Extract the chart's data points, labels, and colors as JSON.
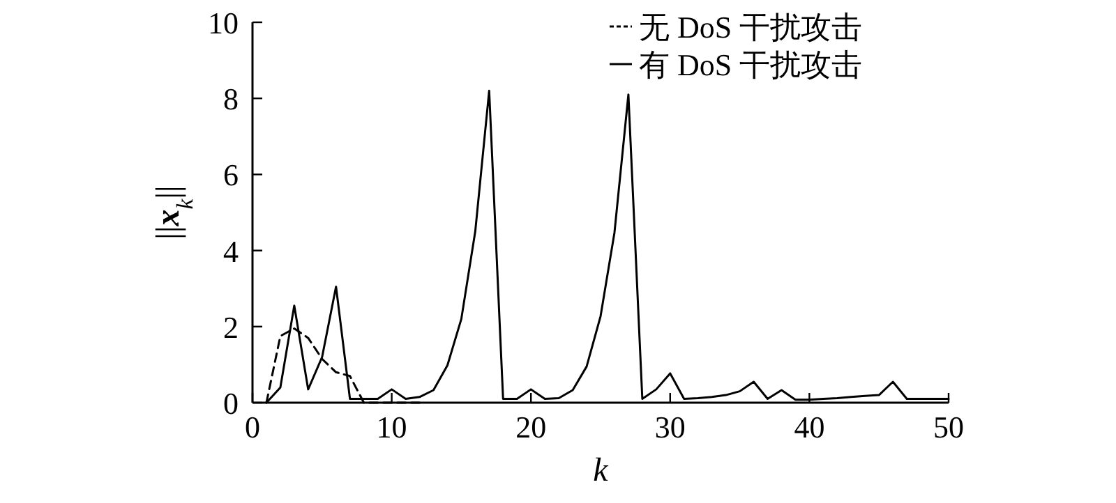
{
  "chart_data": {
    "type": "line",
    "xlabel": "k",
    "ylabel": "||**x**$_{k}$||",
    "xlim": [
      0,
      50
    ],
    "ylim": [
      0,
      10
    ],
    "xticks": [
      0,
      10,
      20,
      30,
      40,
      50
    ],
    "yticks": [
      0,
      2,
      4,
      6,
      8,
      10
    ],
    "legend": "top right",
    "grid": false,
    "marker": "none",
    "series": [
      {
        "name": "无 DoS 干扰攻击",
        "color": "#000000",
        "line_style": "dashed",
        "x": [
          1,
          2,
          3,
          4,
          5,
          6,
          7,
          8,
          9,
          10,
          11,
          12
        ],
        "values": [
          0,
          1.75,
          1.95,
          1.7,
          1.15,
          0.8,
          0.7,
          0,
          0,
          0,
          0,
          0
        ]
      },
      {
        "name": "有 DoS 干扰攻击",
        "color": "#000000",
        "line_style": "solid",
        "x": [
          1,
          2,
          3,
          4,
          5,
          6,
          7,
          8,
          9,
          10,
          11,
          12,
          13,
          14,
          15,
          16,
          17,
          18,
          19,
          20,
          21,
          22,
          23,
          24,
          25,
          26,
          27,
          28,
          29,
          30,
          31,
          32,
          33,
          34,
          35,
          36,
          37,
          38,
          39,
          40,
          41,
          42,
          43,
          44,
          45,
          46,
          47,
          48,
          49,
          50
        ],
        "values": [
          0,
          0.4,
          2.55,
          0.35,
          1.2,
          3.05,
          0.1,
          0.1,
          0.1,
          0.35,
          0.1,
          0.15,
          0.33,
          0.98,
          2.2,
          4.5,
          8.2,
          0.1,
          0.1,
          0.35,
          0.1,
          0.12,
          0.33,
          0.95,
          2.27,
          4.47,
          8.1,
          0.1,
          0.35,
          0.77,
          0.1,
          0.12,
          0.15,
          0.2,
          0.3,
          0.55,
          0.1,
          0.33,
          0.08,
          0.08,
          0.1,
          0.12,
          0.15,
          0.18,
          0.2,
          0.55,
          0.1,
          0.1,
          0.1,
          0.1
        ]
      }
    ]
  }
}
